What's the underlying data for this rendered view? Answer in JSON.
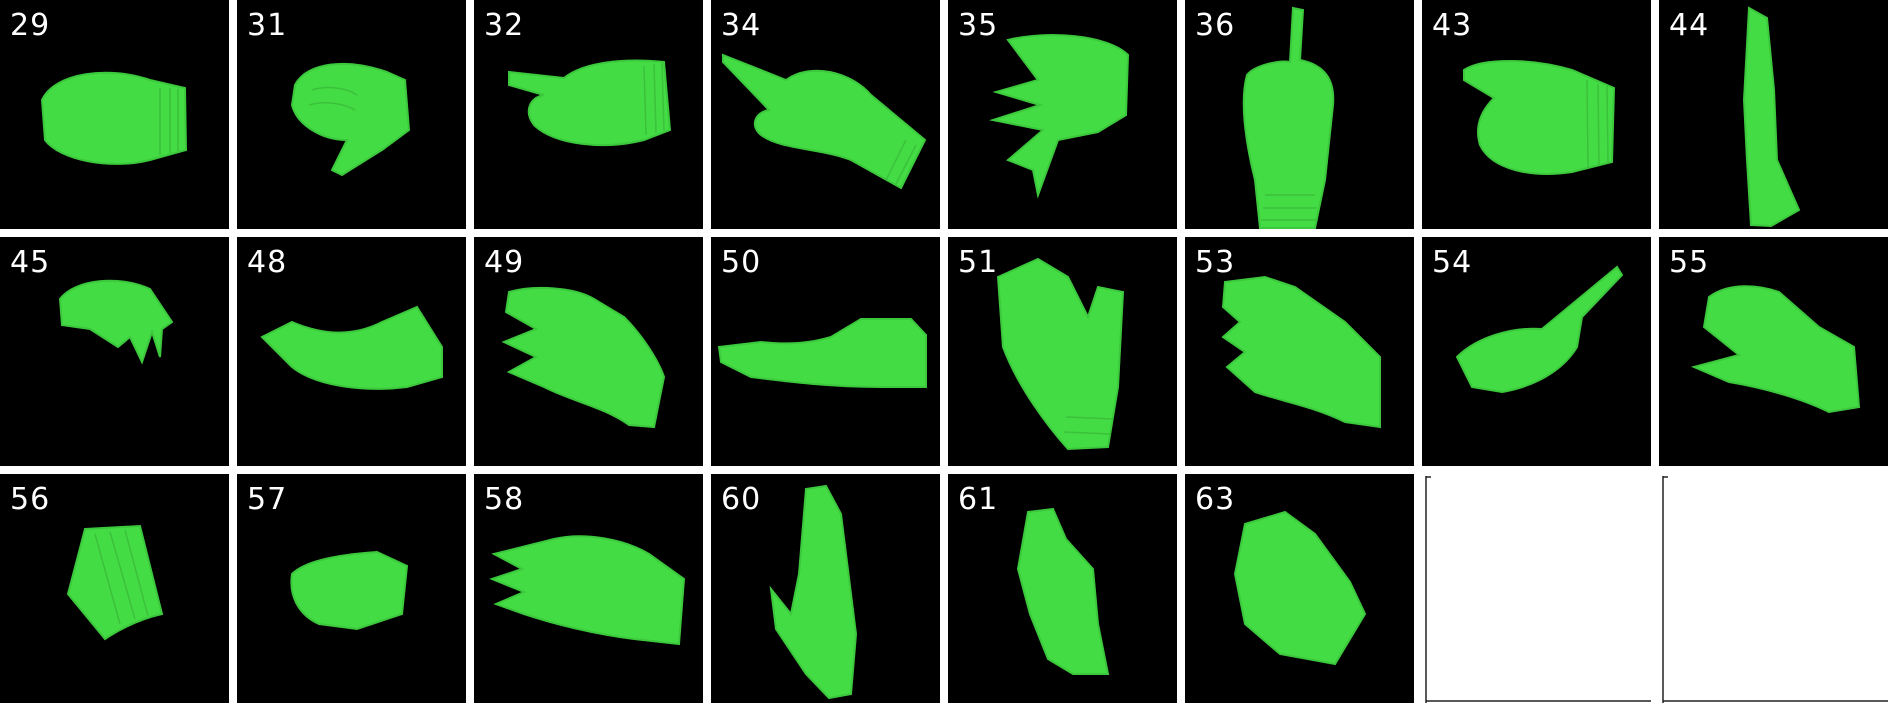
{
  "tiles": [
    {
      "label": "29",
      "pose": "fist-side"
    },
    {
      "label": "31",
      "pose": "curled-thumb-down"
    },
    {
      "label": "32",
      "pose": "point-left"
    },
    {
      "label": "34",
      "pose": "point-diagonal"
    },
    {
      "label": "35",
      "pose": "claw-left"
    },
    {
      "label": "36",
      "pose": "finger-up"
    },
    {
      "label": "43",
      "pose": "fist-point-left"
    },
    {
      "label": "44",
      "pose": "edge-vertical"
    },
    {
      "label": "45",
      "pose": "small-claw"
    },
    {
      "label": "48",
      "pose": "flat-curve"
    },
    {
      "label": "49",
      "pose": "open-left"
    },
    {
      "label": "50",
      "pose": "flat-long"
    },
    {
      "label": "51",
      "pose": "open-up"
    },
    {
      "label": "53",
      "pose": "open-left-low"
    },
    {
      "label": "54",
      "pose": "thumb-up-flat"
    },
    {
      "label": "55",
      "pose": "claw-right"
    },
    {
      "label": "56",
      "pose": "cuff"
    },
    {
      "label": "57",
      "pose": "fist-small"
    },
    {
      "label": "58",
      "pose": "open-flat"
    },
    {
      "label": "60",
      "pose": "tall-thumb"
    },
    {
      "label": "61",
      "pose": "fist-vertical"
    },
    {
      "label": "63",
      "pose": "fist-cuff"
    },
    {
      "label": "",
      "pose": "blank"
    },
    {
      "label": "",
      "pose": "blank"
    }
  ],
  "colors": {
    "glove": "#44dc44",
    "background": "#000000",
    "gutter": "#ffffff"
  }
}
